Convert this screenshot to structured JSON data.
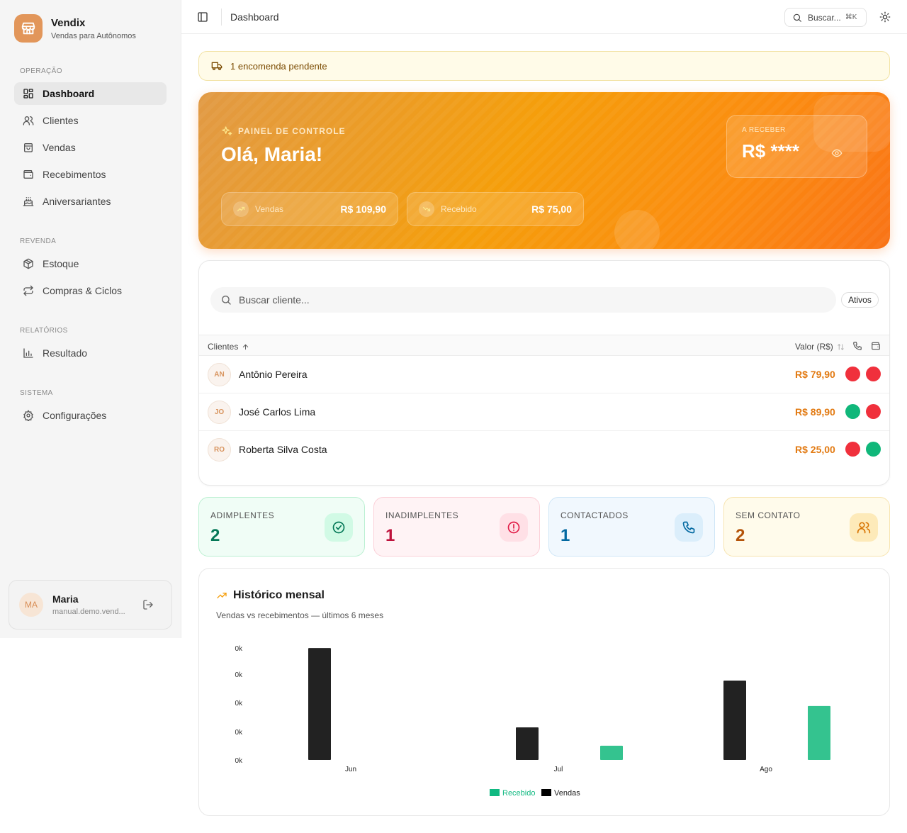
{
  "brand": {
    "name": "Vendix",
    "subtitle": "Vendas para Autônomos"
  },
  "sidebar": {
    "sections": [
      {
        "title": "OPERAÇÃO"
      },
      {
        "title": "REVENDA"
      },
      {
        "title": "RELATÓRIOS"
      },
      {
        "title": "SISTEMA"
      }
    ],
    "items": [
      {
        "label": "Dashboard",
        "icon": "dashboard-icon",
        "active": true
      },
      {
        "label": "Clientes",
        "icon": "users-icon"
      },
      {
        "label": "Vendas",
        "icon": "shopping-bag-icon"
      },
      {
        "label": "Recebimentos",
        "icon": "wallet-icon"
      },
      {
        "label": "Aniversariantes",
        "icon": "cake-icon"
      },
      {
        "label": "Estoque",
        "icon": "package-icon"
      },
      {
        "label": "Compras & Ciclos",
        "icon": "repeat-icon"
      },
      {
        "label": "Resultado",
        "icon": "bar-chart-icon"
      },
      {
        "label": "Configurações",
        "icon": "gear-icon"
      }
    ],
    "user": {
      "initials": "MA",
      "name": "Maria",
      "email": "manual.demo.vend..."
    }
  },
  "topbar": {
    "title": "Dashboard",
    "search_label": "Buscar...",
    "shortcut": "⌘K"
  },
  "alert": {
    "text": "1 encomenda pendente",
    "icon": "truck-icon"
  },
  "hero": {
    "eyebrow": "PAINEL DE CONTROLE",
    "greeting": "Olá, Maria!",
    "sales_label": "Vendas",
    "sales_value": "R$ 109,90",
    "received_label": "Recebido",
    "received_value": "R$ 75,00",
    "receivable_label": "A RECEBER",
    "receivable_value": "R$ ****"
  },
  "clients": {
    "search_placeholder": "Buscar cliente...",
    "filter_label": "Ativos",
    "col_clients": "Clientes",
    "col_value": "Valor (R$)",
    "rows": [
      {
        "initials": "AN",
        "name": "Antônio Pereira",
        "value": "R$ 79,90",
        "contacted": "#f0303c",
        "paid": "#f0303c"
      },
      {
        "initials": "JO",
        "name": "José Carlos Lima",
        "value": "R$ 89,90",
        "contacted": "#10b77a",
        "paid": "#f0303c"
      },
      {
        "initials": "RO",
        "name": "Roberta Silva Costa",
        "value": "R$ 25,00",
        "contacted": "#f0303c",
        "paid": "#10b77a"
      }
    ]
  },
  "stats": [
    {
      "label": "ADIMPLENTES",
      "value": "2",
      "icon": "check-circle-icon",
      "color": "#047857",
      "bg": "#f0fdf6",
      "border": "#bbf0d2",
      "icon_bg": "#d1fae5"
    },
    {
      "label": "INADIMPLENTES",
      "value": "1",
      "icon": "alert-circle-icon",
      "color": "#be123c",
      "bg": "#fff3f5",
      "border": "#fbd0d8",
      "icon_bg": "#ffe0e6"
    },
    {
      "label": "CONTACTADOS",
      "value": "1",
      "icon": "phone-icon",
      "color": "#0369a1",
      "bg": "#f1f8fe",
      "border": "#cfe6f7",
      "icon_bg": "#dbeefb"
    },
    {
      "label": "SEM CONTATO",
      "value": "2",
      "icon": "users-icon",
      "color": "#b45309",
      "bg": "#fffbeb",
      "border": "#f7e4b0",
      "icon_bg": "#fdeab9"
    }
  ],
  "history": {
    "title": "Histórico mensal",
    "subtitle": "Vendas vs recebimentos — últimos 6 meses"
  },
  "chart_data": {
    "type": "bar",
    "categories": [
      "Jun",
      "Jul",
      "Ago"
    ],
    "series": [
      {
        "name": "Vendas",
        "color": "#222222",
        "values": [
          109.9,
          32,
          78
        ]
      },
      {
        "name": "Recebido",
        "color": "#34c38f",
        "values": [
          0,
          14,
          53
        ]
      }
    ],
    "y_tick_labels": [
      "0k",
      "0k",
      "0k",
      "0k",
      "0k"
    ],
    "ylim": [
      0,
      110
    ],
    "legend": "bottom",
    "grid": false
  }
}
